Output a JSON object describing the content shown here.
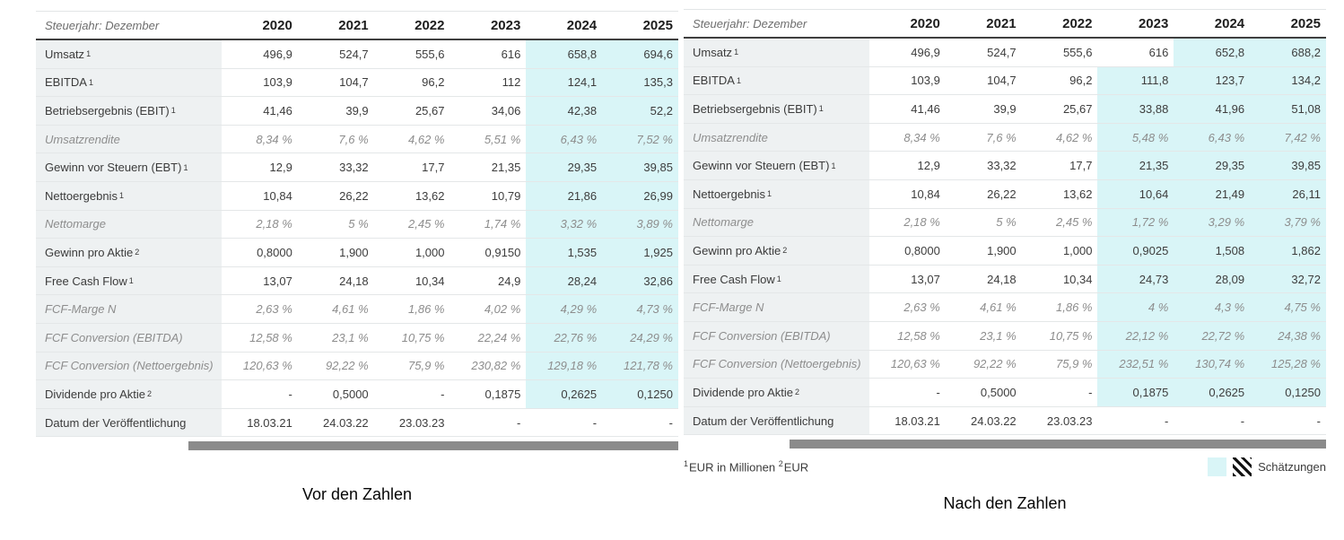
{
  "colors": {
    "estimate_highlight": "#d9f5f7",
    "label_column_bg": "#eef1f2",
    "scrollbar_thumb": "#8b8b8b",
    "header_border": "#3f3f3f"
  },
  "legend": {
    "label": "Schätzungen"
  },
  "footnote": {
    "sup1": "1",
    "text1": "EUR in Millionen",
    "sup2": "2",
    "text2": "EUR"
  },
  "tables": [
    {
      "caption": "Vor den Zahlen",
      "period_label": "Steuerjahr: Dezember",
      "years": [
        "2020",
        "2021",
        "2022",
        "2023",
        "2024",
        "2025"
      ],
      "rows": [
        {
          "label": "Umsatz",
          "sup": "1",
          "italic": false,
          "values": [
            "496,9",
            "524,7",
            "555,6",
            "616",
            "658,8",
            "694,6"
          ],
          "est": [
            0,
            0,
            0,
            0,
            1,
            1
          ]
        },
        {
          "label": "EBITDA",
          "sup": "1",
          "italic": false,
          "values": [
            "103,9",
            "104,7",
            "96,2",
            "112",
            "124,1",
            "135,3"
          ],
          "est": [
            0,
            0,
            0,
            0,
            1,
            1
          ]
        },
        {
          "label": "Betriebsergebnis (EBIT)",
          "sup": "1",
          "italic": false,
          "values": [
            "41,46",
            "39,9",
            "25,67",
            "34,06",
            "42,38",
            "52,2"
          ],
          "est": [
            0,
            0,
            0,
            0,
            1,
            1
          ]
        },
        {
          "label": "Umsatzrendite",
          "italic": true,
          "values": [
            "8,34 %",
            "7,6 %",
            "4,62 %",
            "5,51 %",
            "6,43 %",
            "7,52 %"
          ],
          "est": [
            0,
            0,
            0,
            0,
            1,
            1
          ]
        },
        {
          "label": "Gewinn vor Steuern (EBT)",
          "sup": "1",
          "italic": false,
          "values": [
            "12,9",
            "33,32",
            "17,7",
            "21,35",
            "29,35",
            "39,85"
          ],
          "est": [
            0,
            0,
            0,
            0,
            1,
            1
          ]
        },
        {
          "label": "Nettoergebnis",
          "sup": "1",
          "italic": false,
          "values": [
            "10,84",
            "26,22",
            "13,62",
            "10,79",
            "21,86",
            "26,99"
          ],
          "est": [
            0,
            0,
            0,
            0,
            1,
            1
          ]
        },
        {
          "label": "Nettomarge",
          "italic": true,
          "values": [
            "2,18 %",
            "5 %",
            "2,45 %",
            "1,74 %",
            "3,32 %",
            "3,89 %"
          ],
          "est": [
            0,
            0,
            0,
            0,
            1,
            1
          ]
        },
        {
          "label": "Gewinn pro Aktie",
          "sup": "2",
          "italic": false,
          "values": [
            "0,8000",
            "1,900",
            "1,000",
            "0,9150",
            "1,535",
            "1,925"
          ],
          "est": [
            0,
            0,
            0,
            0,
            1,
            1
          ]
        },
        {
          "label": "Free Cash Flow",
          "sup": "1",
          "italic": false,
          "values": [
            "13,07",
            "24,18",
            "10,34",
            "24,9",
            "28,24",
            "32,86"
          ],
          "est": [
            0,
            0,
            0,
            0,
            1,
            1
          ]
        },
        {
          "label": "FCF-Marge N",
          "italic": true,
          "values": [
            "2,63 %",
            "4,61 %",
            "1,86 %",
            "4,02 %",
            "4,29 %",
            "4,73 %"
          ],
          "est": [
            0,
            0,
            0,
            0,
            1,
            1
          ]
        },
        {
          "label": "FCF Conversion (EBITDA)",
          "italic": true,
          "values": [
            "12,58 %",
            "23,1 %",
            "10,75 %",
            "22,24 %",
            "22,76 %",
            "24,29 %"
          ],
          "est": [
            0,
            0,
            0,
            0,
            1,
            1
          ]
        },
        {
          "label": "FCF Conversion (Nettoergebnis)",
          "italic": true,
          "values": [
            "120,63 %",
            "92,22 %",
            "75,9 %",
            "230,82 %",
            "129,18 %",
            "121,78 %"
          ],
          "est": [
            0,
            0,
            0,
            0,
            1,
            1
          ]
        },
        {
          "label": "Dividende pro Aktie",
          "sup": "2",
          "italic": false,
          "values": [
            "-",
            "0,5000",
            "-",
            "0,1875",
            "0,2625",
            "0,1250"
          ],
          "est": [
            0,
            0,
            0,
            0,
            1,
            1
          ]
        },
        {
          "label": "Datum der Veröffentlichung",
          "italic": false,
          "values": [
            "18.03.21",
            "24.03.22",
            "23.03.23",
            "-",
            "-",
            "-"
          ],
          "est": [
            0,
            0,
            0,
            0,
            0,
            0
          ]
        }
      ]
    },
    {
      "caption": "Nach den Zahlen",
      "period_label": "Steuerjahr: Dezember",
      "years": [
        "2020",
        "2021",
        "2022",
        "2023",
        "2024",
        "2025"
      ],
      "rows": [
        {
          "label": "Umsatz",
          "sup": "1",
          "italic": false,
          "values": [
            "496,9",
            "524,7",
            "555,6",
            "616",
            "652,8",
            "688,2"
          ],
          "est": [
            0,
            0,
            0,
            0,
            1,
            1
          ]
        },
        {
          "label": "EBITDA",
          "sup": "1",
          "italic": false,
          "values": [
            "103,9",
            "104,7",
            "96,2",
            "111,8",
            "123,7",
            "134,2"
          ],
          "est": [
            0,
            0,
            0,
            1,
            1,
            1
          ]
        },
        {
          "label": "Betriebsergebnis (EBIT)",
          "sup": "1",
          "italic": false,
          "values": [
            "41,46",
            "39,9",
            "25,67",
            "33,88",
            "41,96",
            "51,08"
          ],
          "est": [
            0,
            0,
            0,
            1,
            1,
            1
          ]
        },
        {
          "label": "Umsatzrendite",
          "italic": true,
          "values": [
            "8,34 %",
            "7,6 %",
            "4,62 %",
            "5,48 %",
            "6,43 %",
            "7,42 %"
          ],
          "est": [
            0,
            0,
            0,
            1,
            1,
            1
          ]
        },
        {
          "label": "Gewinn vor Steuern (EBT)",
          "sup": "1",
          "italic": false,
          "values": [
            "12,9",
            "33,32",
            "17,7",
            "21,35",
            "29,35",
            "39,85"
          ],
          "est": [
            0,
            0,
            0,
            1,
            1,
            1
          ]
        },
        {
          "label": "Nettoergebnis",
          "sup": "1",
          "italic": false,
          "values": [
            "10,84",
            "26,22",
            "13,62",
            "10,64",
            "21,49",
            "26,11"
          ],
          "est": [
            0,
            0,
            0,
            1,
            1,
            1
          ]
        },
        {
          "label": "Nettomarge",
          "italic": true,
          "values": [
            "2,18 %",
            "5 %",
            "2,45 %",
            "1,72 %",
            "3,29 %",
            "3,79 %"
          ],
          "est": [
            0,
            0,
            0,
            1,
            1,
            1
          ]
        },
        {
          "label": "Gewinn pro Aktie",
          "sup": "2",
          "italic": false,
          "values": [
            "0,8000",
            "1,900",
            "1,000",
            "0,9025",
            "1,508",
            "1,862"
          ],
          "est": [
            0,
            0,
            0,
            1,
            1,
            1
          ]
        },
        {
          "label": "Free Cash Flow",
          "sup": "1",
          "italic": false,
          "values": [
            "13,07",
            "24,18",
            "10,34",
            "24,73",
            "28,09",
            "32,72"
          ],
          "est": [
            0,
            0,
            0,
            1,
            1,
            1
          ]
        },
        {
          "label": "FCF-Marge N",
          "italic": true,
          "values": [
            "2,63 %",
            "4,61 %",
            "1,86 %",
            "4 %",
            "4,3 %",
            "4,75 %"
          ],
          "est": [
            0,
            0,
            0,
            1,
            1,
            1
          ]
        },
        {
          "label": "FCF Conversion (EBITDA)",
          "italic": true,
          "values": [
            "12,58 %",
            "23,1 %",
            "10,75 %",
            "22,12 %",
            "22,72 %",
            "24,38 %"
          ],
          "est": [
            0,
            0,
            0,
            1,
            1,
            1
          ]
        },
        {
          "label": "FCF Conversion (Nettoergebnis)",
          "italic": true,
          "values": [
            "120,63 %",
            "92,22 %",
            "75,9 %",
            "232,51 %",
            "130,74 %",
            "125,28 %"
          ],
          "est": [
            0,
            0,
            0,
            1,
            1,
            1
          ]
        },
        {
          "label": "Dividende pro Aktie",
          "sup": "2",
          "italic": false,
          "values": [
            "-",
            "0,5000",
            "-",
            "0,1875",
            "0,2625",
            "0,1250"
          ],
          "est": [
            0,
            0,
            0,
            1,
            1,
            1
          ]
        },
        {
          "label": "Datum der Veröffentlichung",
          "italic": false,
          "values": [
            "18.03.21",
            "24.03.22",
            "23.03.23",
            "-",
            "-",
            "-"
          ],
          "est": [
            0,
            0,
            0,
            0,
            0,
            0
          ]
        }
      ]
    }
  ]
}
